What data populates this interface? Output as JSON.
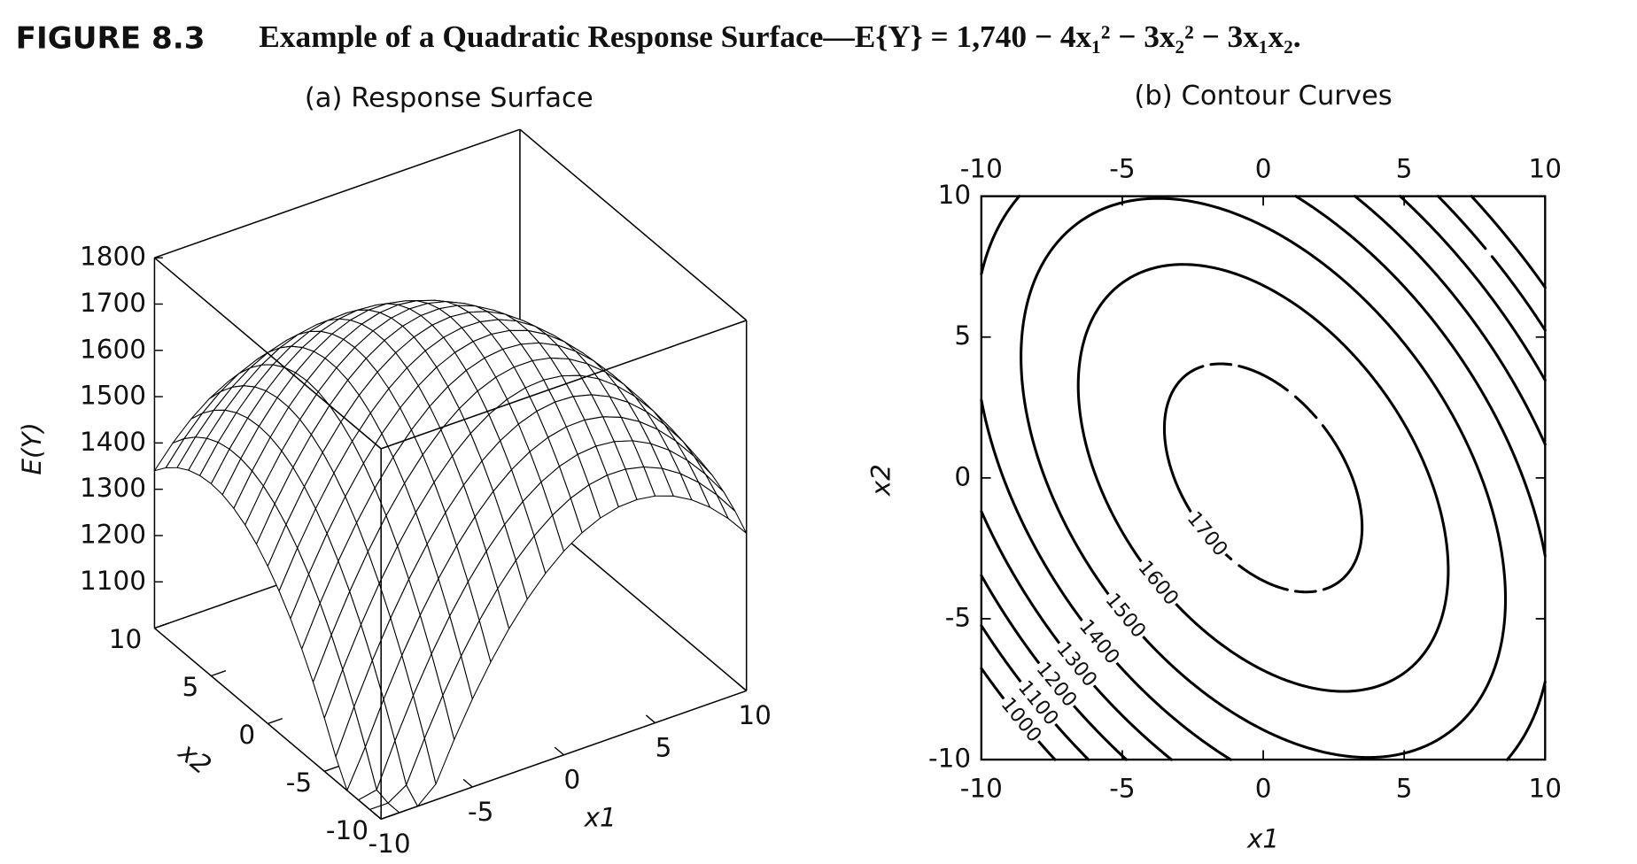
{
  "figure": {
    "label": "FIGURE 8.3",
    "title": "Example of a Quadratic Response Surface—E{Y} = 1,740 − 4x₁² − 3x₂² − 3x₁x₂.",
    "function": {
      "constant": 1740,
      "x1_squared": -4,
      "x2_squared": -3,
      "x1_x2": -3
    }
  },
  "chart_data": [
    {
      "type": "surface",
      "title": "(a) Response Surface",
      "x_label": "x1",
      "y_label": "x2",
      "z_label": "E(Y)",
      "xlim": [
        -10,
        10
      ],
      "ylim": [
        -10,
        10
      ],
      "zlim": [
        1000,
        1800
      ],
      "xticks": [
        -10,
        -5,
        0,
        5,
        10
      ],
      "yticks": [
        -10,
        -5,
        0,
        5,
        10
      ],
      "zticks": [
        1100,
        1200,
        1300,
        1400,
        1500,
        1600,
        1700,
        1800
      ],
      "color": "#ffffff",
      "line_color": "#000000"
    },
    {
      "type": "contour",
      "title": "(b) Contour Curves",
      "x_label": "x1",
      "y_label": "x2",
      "xlim": [
        -10,
        10
      ],
      "ylim": [
        -10,
        10
      ],
      "xticks": [
        -10,
        -5,
        0,
        5,
        10
      ],
      "yticks": [
        -10,
        -5,
        0,
        5,
        10
      ],
      "levels": [
        1000,
        1100,
        1200,
        1300,
        1400,
        1500,
        1600,
        1700
      ],
      "color": "#000000"
    }
  ]
}
